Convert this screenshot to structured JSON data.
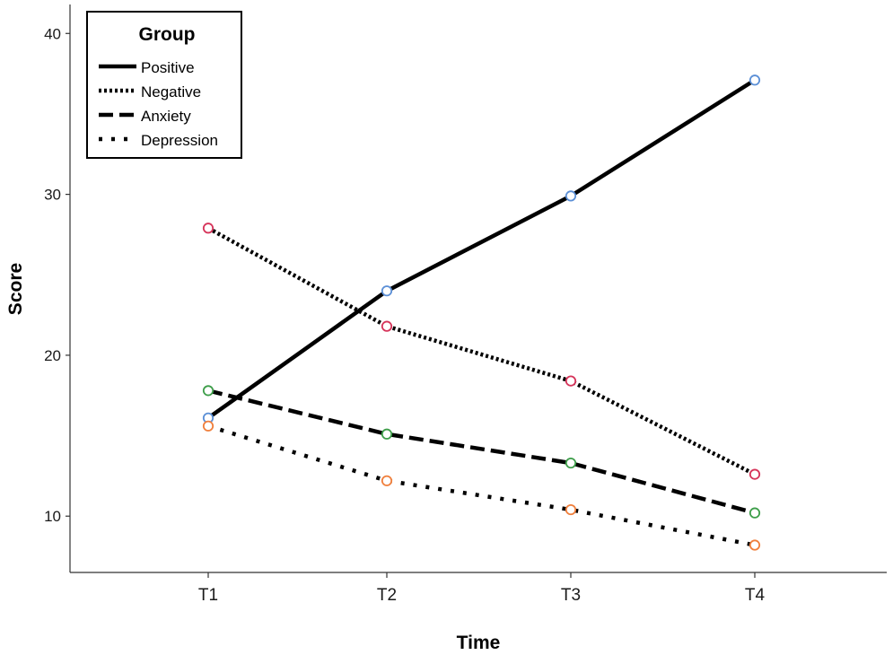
{
  "chart_data": {
    "type": "line",
    "title": "",
    "xlabel": "Time",
    "ylabel": "Score",
    "categories": [
      "T1",
      "T2",
      "T3",
      "T4"
    ],
    "y_ticks": [
      10,
      20,
      30,
      40
    ],
    "ylim": [
      6.5,
      41.8
    ],
    "grid": false,
    "legend": {
      "title": "Group",
      "position": "top-left"
    },
    "series": [
      {
        "name": "Positive",
        "values": [
          16.1,
          24.0,
          29.9,
          37.1
        ],
        "line_style": "solid",
        "marker_color": "#5b8fd6"
      },
      {
        "name": "Negative",
        "values": [
          27.9,
          21.8,
          18.4,
          12.6
        ],
        "line_style": "dotted",
        "marker_color": "#d6345a"
      },
      {
        "name": "Anxiety",
        "values": [
          17.8,
          15.1,
          13.3,
          10.2
        ],
        "line_style": "dashed",
        "marker_color": "#3e9e4a"
      },
      {
        "name": "Depression",
        "values": [
          15.6,
          12.2,
          10.4,
          8.2
        ],
        "line_style": "sparse-dotted",
        "marker_color": "#f07f3c"
      }
    ]
  }
}
